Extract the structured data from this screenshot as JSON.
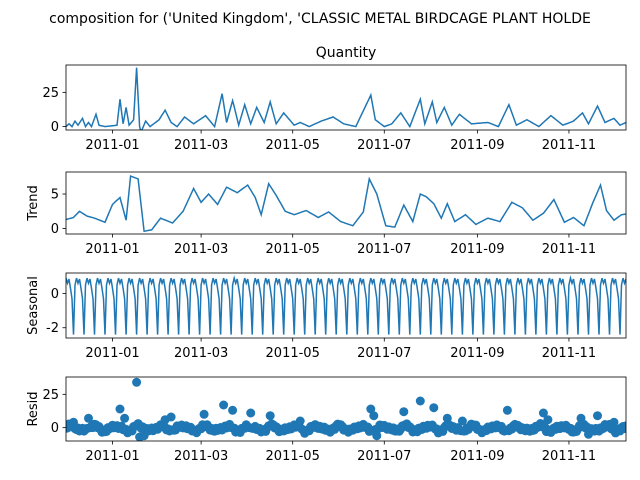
{
  "chart_data": {
    "type": "line",
    "title": "composition for ('United Kingdom', 'CLASSIC METAL BIRDCAGE PLANT HOLDE",
    "colors": {
      "series": "#1f77b4",
      "axes": "#000000",
      "background": "#ffffff"
    },
    "x_axis": {
      "type": "date",
      "range": [
        "2010-12-01",
        "2011-12-09"
      ],
      "ticks": [
        "2011-01",
        "2011-03",
        "2011-05",
        "2011-07",
        "2011-09",
        "2011-11"
      ]
    },
    "panels": [
      {
        "key": "observed",
        "title": "Quantity",
        "ylabel": "",
        "kind": "line",
        "ylim": [
          -2.5,
          45
        ],
        "yticks": [
          0,
          25
        ],
        "anchors": [
          [
            "2010-12-01",
            0
          ],
          [
            "2010-12-03",
            2
          ],
          [
            "2010-12-05",
            0
          ],
          [
            "2010-12-07",
            4
          ],
          [
            "2010-12-09",
            1
          ],
          [
            "2010-12-12",
            6
          ],
          [
            "2010-12-14",
            0
          ],
          [
            "2010-12-16",
            3
          ],
          [
            "2010-12-18",
            0
          ],
          [
            "2010-12-21",
            9
          ],
          [
            "2010-12-23",
            1
          ],
          [
            "2010-12-27",
            0
          ],
          [
            "2011-01-04",
            1
          ],
          [
            "2011-01-06",
            20
          ],
          [
            "2011-01-08",
            2
          ],
          [
            "2011-01-10",
            14
          ],
          [
            "2011-01-12",
            1
          ],
          [
            "2011-01-15",
            5
          ],
          [
            "2011-01-17",
            43
          ],
          [
            "2011-01-19",
            0
          ],
          [
            "2011-01-20",
            -4
          ],
          [
            "2011-01-23",
            4
          ],
          [
            "2011-01-26",
            0
          ],
          [
            "2011-02-01",
            5
          ],
          [
            "2011-02-05",
            12
          ],
          [
            "2011-02-09",
            3
          ],
          [
            "2011-02-13",
            0
          ],
          [
            "2011-02-18",
            7
          ],
          [
            "2011-02-24",
            2
          ],
          [
            "2011-03-04",
            8
          ],
          [
            "2011-03-10",
            0
          ],
          [
            "2011-03-15",
            24
          ],
          [
            "2011-03-18",
            3
          ],
          [
            "2011-03-22",
            19
          ],
          [
            "2011-03-26",
            1
          ],
          [
            "2011-03-30",
            16
          ],
          [
            "2011-04-03",
            2
          ],
          [
            "2011-04-07",
            14
          ],
          [
            "2011-04-12",
            3
          ],
          [
            "2011-04-16",
            18
          ],
          [
            "2011-04-20",
            2
          ],
          [
            "2011-04-25",
            10
          ],
          [
            "2011-05-02",
            1
          ],
          [
            "2011-05-06",
            3
          ],
          [
            "2011-05-12",
            0
          ],
          [
            "2011-05-20",
            4
          ],
          [
            "2011-05-28",
            7
          ],
          [
            "2011-06-04",
            2
          ],
          [
            "2011-06-12",
            0
          ],
          [
            "2011-06-22",
            23
          ],
          [
            "2011-06-25",
            5
          ],
          [
            "2011-07-01",
            0
          ],
          [
            "2011-07-06",
            2
          ],
          [
            "2011-07-12",
            10
          ],
          [
            "2011-07-18",
            0
          ],
          [
            "2011-07-25",
            20
          ],
          [
            "2011-07-28",
            2
          ],
          [
            "2011-08-02",
            18
          ],
          [
            "2011-08-05",
            3
          ],
          [
            "2011-08-10",
            14
          ],
          [
            "2011-08-15",
            1
          ],
          [
            "2011-08-20",
            9
          ],
          [
            "2011-08-28",
            2
          ],
          [
            "2011-09-08",
            3
          ],
          [
            "2011-09-15",
            0
          ],
          [
            "2011-09-22",
            16
          ],
          [
            "2011-09-27",
            1
          ],
          [
            "2011-10-04",
            5
          ],
          [
            "2011-10-12",
            0
          ],
          [
            "2011-10-20",
            8
          ],
          [
            "2011-10-28",
            1
          ],
          [
            "2011-11-04",
            4
          ],
          [
            "2011-11-10",
            10
          ],
          [
            "2011-11-14",
            2
          ],
          [
            "2011-11-20",
            15
          ],
          [
            "2011-11-25",
            3
          ],
          [
            "2011-12-01",
            6
          ],
          [
            "2011-12-05",
            1
          ],
          [
            "2011-12-09",
            3
          ]
        ]
      },
      {
        "key": "trend",
        "title": "",
        "ylabel": "Trend",
        "kind": "line",
        "ylim": [
          -0.8,
          8.2
        ],
        "yticks": [
          0,
          5
        ],
        "anchors": [
          [
            "2010-12-01",
            1.3
          ],
          [
            "2010-12-06",
            1.6
          ],
          [
            "2010-12-10",
            2.5
          ],
          [
            "2010-12-15",
            1.8
          ],
          [
            "2010-12-20",
            1.5
          ],
          [
            "2010-12-27",
            0.9
          ],
          [
            "2011-01-01",
            3.5
          ],
          [
            "2011-01-06",
            4.5
          ],
          [
            "2011-01-10",
            1.2
          ],
          [
            "2011-01-13",
            7.6
          ],
          [
            "2011-01-18",
            7.2
          ],
          [
            "2011-01-22",
            -0.4
          ],
          [
            "2011-01-27",
            -0.2
          ],
          [
            "2011-02-02",
            1.5
          ],
          [
            "2011-02-10",
            0.8
          ],
          [
            "2011-02-17",
            2.5
          ],
          [
            "2011-02-24",
            5.8
          ],
          [
            "2011-03-01",
            3.8
          ],
          [
            "2011-03-06",
            5.0
          ],
          [
            "2011-03-12",
            3.5
          ],
          [
            "2011-03-18",
            6.0
          ],
          [
            "2011-03-25",
            5.2
          ],
          [
            "2011-04-01",
            6.3
          ],
          [
            "2011-04-06",
            4.5
          ],
          [
            "2011-04-10",
            2.0
          ],
          [
            "2011-04-15",
            6.5
          ],
          [
            "2011-04-20",
            4.8
          ],
          [
            "2011-04-26",
            2.5
          ],
          [
            "2011-05-02",
            2.0
          ],
          [
            "2011-05-10",
            2.6
          ],
          [
            "2011-05-18",
            1.6
          ],
          [
            "2011-05-25",
            2.4
          ],
          [
            "2011-06-02",
            1.0
          ],
          [
            "2011-06-10",
            0.4
          ],
          [
            "2011-06-17",
            2.4
          ],
          [
            "2011-06-21",
            7.2
          ],
          [
            "2011-06-26",
            5.0
          ],
          [
            "2011-07-02",
            0.4
          ],
          [
            "2011-07-08",
            0.2
          ],
          [
            "2011-07-14",
            3.4
          ],
          [
            "2011-07-20",
            1.0
          ],
          [
            "2011-07-25",
            5.0
          ],
          [
            "2011-07-29",
            4.6
          ],
          [
            "2011-08-03",
            3.6
          ],
          [
            "2011-08-08",
            1.5
          ],
          [
            "2011-08-12",
            3.6
          ],
          [
            "2011-08-17",
            1.0
          ],
          [
            "2011-08-24",
            2.0
          ],
          [
            "2011-08-31",
            0.6
          ],
          [
            "2011-09-08",
            1.5
          ],
          [
            "2011-09-16",
            1.0
          ],
          [
            "2011-09-24",
            3.8
          ],
          [
            "2011-10-01",
            3.0
          ],
          [
            "2011-10-08",
            1.2
          ],
          [
            "2011-10-15",
            2.2
          ],
          [
            "2011-10-22",
            4.2
          ],
          [
            "2011-10-29",
            0.9
          ],
          [
            "2011-11-04",
            1.6
          ],
          [
            "2011-11-11",
            0.4
          ],
          [
            "2011-11-17",
            3.8
          ],
          [
            "2011-11-22",
            6.3
          ],
          [
            "2011-11-26",
            2.6
          ],
          [
            "2011-12-01",
            1.2
          ],
          [
            "2011-12-06",
            2.0
          ],
          [
            "2011-12-09",
            2.1
          ]
        ]
      },
      {
        "key": "seasonal",
        "title": "",
        "ylabel": "Seasonal",
        "kind": "seasonal",
        "ylim": [
          -2.6,
          1.2
        ],
        "yticks": [
          0,
          -2
        ],
        "period_days": 7,
        "pattern": [
          0.9,
          0.6,
          0.85,
          0.3,
          -0.3,
          -2.4,
          0.5
        ]
      },
      {
        "key": "resid",
        "title": "",
        "ylabel": "Resid",
        "kind": "scatter",
        "ylim": [
          -10,
          38
        ],
        "yticks": [
          0,
          25
        ],
        "anchors": [
          [
            "2010-12-06",
            4
          ],
          [
            "2010-12-16",
            7
          ],
          [
            "2011-01-06",
            14
          ],
          [
            "2011-01-09",
            7
          ],
          [
            "2011-01-17",
            34
          ],
          [
            "2011-01-19",
            -7
          ],
          [
            "2011-01-22",
            -6
          ],
          [
            "2011-02-05",
            6
          ],
          [
            "2011-02-09",
            8
          ],
          [
            "2011-03-03",
            10
          ],
          [
            "2011-03-16",
            17
          ],
          [
            "2011-03-22",
            13
          ],
          [
            "2011-04-03",
            11
          ],
          [
            "2011-04-16",
            9
          ],
          [
            "2011-05-06",
            5
          ],
          [
            "2011-06-22",
            14
          ],
          [
            "2011-06-24",
            9
          ],
          [
            "2011-06-26",
            -6
          ],
          [
            "2011-07-14",
            12
          ],
          [
            "2011-07-25",
            20
          ],
          [
            "2011-08-03",
            15
          ],
          [
            "2011-08-12",
            7
          ],
          [
            "2011-08-22",
            5
          ],
          [
            "2011-09-21",
            13
          ],
          [
            "2011-10-15",
            11
          ],
          [
            "2011-10-18",
            6
          ],
          [
            "2011-11-09",
            7
          ],
          [
            "2011-11-20",
            9
          ],
          [
            "2011-11-14",
            -5
          ],
          [
            "2011-12-01",
            4
          ]
        ]
      }
    ]
  }
}
